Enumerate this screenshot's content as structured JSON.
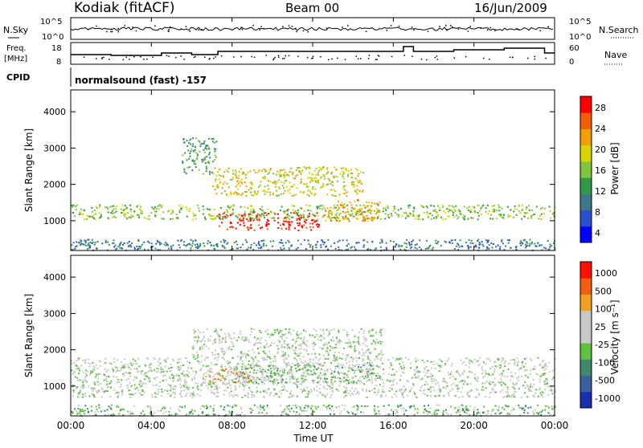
{
  "header": {
    "station": "Kodiak (fitACF)",
    "beam": "Beam 00",
    "date": "16/Jun/2009"
  },
  "summary": {
    "nsky_label": "N.Sky",
    "nsearch_label": "N.Search",
    "freq_label_line1": "Freq.",
    "freq_label_line2": "[MHz]",
    "nave_label": "Nave",
    "cpid_label": "CPID",
    "cpid_value": "normalsound (fast) -157",
    "noise_ticks": [
      "10^5",
      "10^0"
    ],
    "freq_ticks": [
      "18",
      "8"
    ],
    "nave_ticks": [
      "60",
      "0"
    ]
  },
  "chart_data": [
    {
      "type": "heatmap",
      "name": "power",
      "xlabel": "Time UT",
      "ylabel": "Slant Range [km]",
      "xlim": [
        0,
        24
      ],
      "ylim": [
        180,
        4600
      ],
      "x_ticks": [
        "00:00",
        "04:00",
        "08:00",
        "12:00",
        "16:00",
        "20:00",
        "00:00"
      ],
      "y_ticks": [
        1000,
        2000,
        3000,
        4000
      ],
      "colorbar_label": "Power [dB]",
      "colorbar_ticks": [
        "28",
        "24",
        "20",
        "16",
        "12",
        "8",
        "4"
      ],
      "colors": [
        "#0000ff",
        "#2a4fd0",
        "#3c7a8a",
        "#2e9a4a",
        "#7fc63a",
        "#d8d400",
        "#f0a000",
        "#f06000",
        "#ff0000"
      ],
      "features": [
        {
          "t0": 7.3,
          "t1": 12.3,
          "r0": 750,
          "r1": 1250,
          "level": 8
        },
        {
          "t0": 0,
          "t1": 24,
          "r0": 1050,
          "r1": 1450,
          "level": 4
        },
        {
          "t0": 12.5,
          "t1": 15.3,
          "r0": 1000,
          "r1": 1600,
          "level": 6
        },
        {
          "t0": 7,
          "t1": 14.5,
          "r0": 1700,
          "r1": 2500,
          "level": 5
        },
        {
          "t0": 5.5,
          "t1": 7.2,
          "r0": 2300,
          "r1": 3300,
          "level": 3
        },
        {
          "t0": 0,
          "t1": 24,
          "r0": 200,
          "r1": 500,
          "level": 2
        }
      ]
    },
    {
      "type": "heatmap",
      "name": "velocity",
      "xlabel": "Time UT",
      "ylabel": "Slant Range [km]",
      "xlim": [
        0,
        24
      ],
      "ylim": [
        180,
        4600
      ],
      "x_ticks": [
        "00:00",
        "04:00",
        "08:00",
        "12:00",
        "16:00",
        "20:00",
        "00:00"
      ],
      "y_ticks": [
        1000,
        2000,
        3000,
        4000
      ],
      "colorbar_label": "Velocity [m s⁻¹]",
      "colorbar_ticks": [
        "1000",
        "500",
        "100",
        "25",
        "-25",
        "-100",
        "-500",
        "-1000"
      ],
      "colors": [
        "#1a2fb0",
        "#3c5fa0",
        "#3c8a6a",
        "#60c040",
        "#c8c8c8",
        "#c8c8c8",
        "#f0a020",
        "#f06010",
        "#ff1000"
      ],
      "features": [
        {
          "t0": 8,
          "t1": 15.3,
          "r0": 1100,
          "r1": 1600,
          "level": 3
        },
        {
          "t0": 6.5,
          "t1": 9,
          "r0": 1100,
          "r1": 1500,
          "level": 6
        },
        {
          "t0": 0,
          "t1": 24,
          "r0": 700,
          "r1": 1800,
          "level": 4
        },
        {
          "t0": 6,
          "t1": 15.5,
          "r0": 1800,
          "r1": 2600,
          "level": 4
        },
        {
          "t0": 0,
          "t1": 24,
          "r0": 200,
          "r1": 500,
          "level": 3
        }
      ]
    }
  ]
}
